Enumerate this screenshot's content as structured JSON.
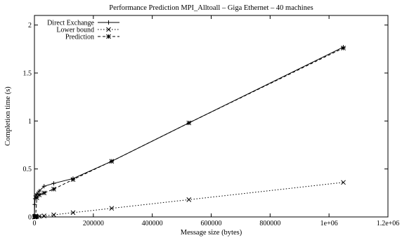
{
  "chart_data": {
    "type": "line",
    "title": "Performance Prediction MPI_Alltoall – Giga Ethernet – 40 machines",
    "xlabel": "Message size (bytes)",
    "ylabel": "Completion time (s)",
    "xlim": [
      0,
      1200000
    ],
    "ylim": [
      0,
      2.1
    ],
    "xticks": [
      0,
      200000,
      400000,
      600000,
      800000,
      1000000,
      1200000
    ],
    "xtick_labels": [
      "0",
      "200000",
      "400000",
      "600000",
      "800000",
      "1e+06",
      "1.2e+06"
    ],
    "yticks": [
      0,
      0.5,
      1,
      1.5,
      2
    ],
    "ytick_labels": [
      "0",
      "0.5",
      "1",
      "1.5",
      "2"
    ],
    "grid": false,
    "legend_position": "top-left",
    "series": [
      {
        "name": "Direct Exchange",
        "style": "solid",
        "marker": "plus",
        "x": [
          0,
          1024,
          2048,
          4096,
          8192,
          16384,
          32768,
          65536,
          131072,
          262144,
          524288,
          1048576
        ],
        "y": [
          0.0,
          0.13,
          0.19,
          0.22,
          0.24,
          0.27,
          0.32,
          0.35,
          0.4,
          0.58,
          0.98,
          1.77
        ]
      },
      {
        "name": "Lower bound",
        "style": "dotted",
        "marker": "cross",
        "x": [
          0,
          1024,
          2048,
          4096,
          8192,
          16384,
          32768,
          65536,
          131072,
          262144,
          524288,
          1048576
        ],
        "y": [
          0.0,
          0.001,
          0.001,
          0.002,
          0.003,
          0.006,
          0.011,
          0.022,
          0.045,
          0.09,
          0.18,
          0.36
        ]
      },
      {
        "name": "Prediction",
        "style": "dashed",
        "marker": "star",
        "x": [
          0,
          1024,
          2048,
          4096,
          8192,
          16384,
          32768,
          65536,
          131072,
          262144,
          524288,
          1048576
        ],
        "y": [
          0.0,
          0.003,
          0.006,
          0.01,
          0.2,
          0.23,
          0.25,
          0.29,
          0.39,
          0.58,
          0.98,
          1.76
        ]
      }
    ]
  }
}
